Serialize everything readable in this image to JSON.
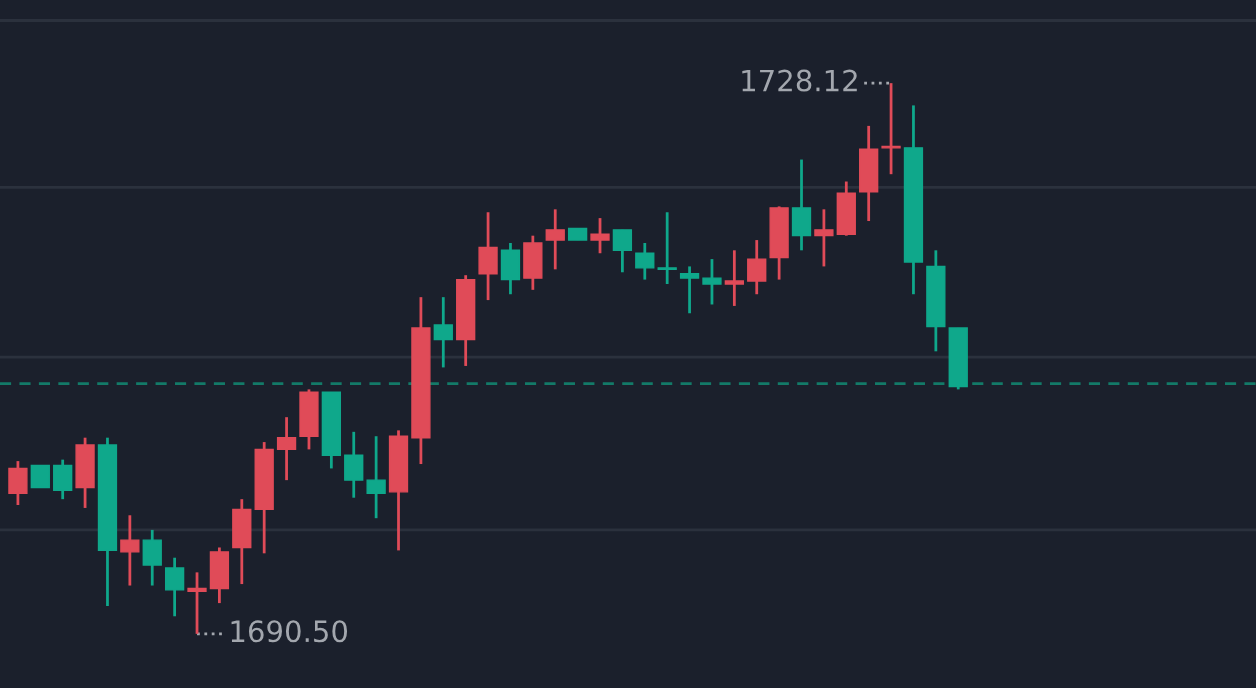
{
  "chart_data": {
    "type": "candlestick",
    "categories": [
      null,
      null,
      null,
      null,
      null,
      null,
      null,
      null,
      null,
      null,
      null,
      null,
      null,
      null,
      null,
      null,
      null,
      null,
      null,
      null,
      null,
      null,
      null,
      null,
      null,
      null,
      null,
      null,
      null,
      null,
      null,
      null,
      null,
      null,
      null,
      null,
      null,
      null,
      null,
      null,
      null,
      null,
      null
    ],
    "ohlc": [
      [
        1700.1,
        1702.3,
        1699.3,
        1701.8
      ],
      [
        1702.0,
        1702.0,
        1700.5,
        1700.5
      ],
      [
        1702.0,
        1702.4,
        1699.7,
        1700.3
      ],
      [
        1700.5,
        1703.9,
        1699.1,
        1703.4
      ],
      [
        1703.4,
        1703.9,
        1692.4,
        1696.2
      ],
      [
        1696.1,
        1698.6,
        1693.8,
        1696.9
      ],
      [
        1696.9,
        1697.6,
        1693.8,
        1695.2
      ],
      [
        1695.0,
        1695.7,
        1691.7,
        1693.5
      ],
      [
        1693.4,
        1694.7,
        1690.5,
        1693.6
      ],
      [
        1693.6,
        1696.4,
        1692.6,
        1696.1
      ],
      [
        1696.4,
        1699.7,
        1693.9,
        1699.0
      ],
      [
        1699.0,
        1703.6,
        1696.0,
        1703.1
      ],
      [
        1703.1,
        1705.3,
        1701.0,
        1703.9
      ],
      [
        1704.0,
        1707.2,
        1703.1,
        1707.0
      ],
      [
        1707.0,
        1707.0,
        1701.8,
        1702.7
      ],
      [
        1702.7,
        1704.3,
        1699.8,
        1701.0
      ],
      [
        1701.0,
        1704.0,
        1698.4,
        1700.1
      ],
      [
        1700.2,
        1704.4,
        1696.2,
        1704.0
      ],
      [
        1703.9,
        1713.5,
        1702.1,
        1711.4
      ],
      [
        1711.6,
        1713.5,
        1708.7,
        1710.6
      ],
      [
        1710.6,
        1715.0,
        1708.8,
        1714.7
      ],
      [
        1715.1,
        1719.3,
        1713.3,
        1716.9
      ],
      [
        1716.7,
        1717.2,
        1713.7,
        1714.7
      ],
      [
        1714.8,
        1717.7,
        1714.0,
        1717.2
      ],
      [
        1717.4,
        1719.5,
        1715.4,
        1718.1
      ],
      [
        1718.2,
        1718.2,
        1717.4,
        1717.4
      ],
      [
        1717.4,
        1718.9,
        1716.5,
        1717.8
      ],
      [
        1718.1,
        1718.1,
        1715.2,
        1716.7
      ],
      [
        1716.5,
        1717.2,
        1714.7,
        1715.5
      ],
      [
        1715.5,
        1719.3,
        1714.4,
        1715.4
      ],
      [
        1715.1,
        1715.6,
        1712.4,
        1714.8
      ],
      [
        1714.8,
        1716.1,
        1713.0,
        1714.4
      ],
      [
        1714.4,
        1716.7,
        1712.9,
        1714.6
      ],
      [
        1714.6,
        1717.4,
        1713.7,
        1716.1
      ],
      [
        1716.2,
        1719.7,
        1714.7,
        1719.6
      ],
      [
        1719.6,
        1722.9,
        1716.7,
        1717.7
      ],
      [
        1717.7,
        1719.5,
        1715.6,
        1718.1
      ],
      [
        1717.8,
        1721.4,
        1717.7,
        1720.6
      ],
      [
        1720.7,
        1725.2,
        1718.7,
        1723.6
      ],
      [
        1723.7,
        1728.12,
        1721.9,
        1723.8
      ],
      [
        1723.7,
        1726.6,
        1713.7,
        1715.9
      ],
      [
        1715.6,
        1716.7,
        1709.8,
        1711.5
      ],
      [
        1711.4,
        1711.4,
        1707.2,
        1707.4
      ]
    ],
    "ylim": [
      1686.8,
      1733.8
    ],
    "yticks": [
      {
        "value": 1732.4,
        "label": null
      },
      {
        "value": 1721.0,
        "label": null
      },
      {
        "value": 1709.4,
        "label": null
      },
      {
        "value": 1697.6,
        "label": null
      }
    ],
    "grid": "y",
    "ref_lines": [
      {
        "axis": "y",
        "value": 1707.6,
        "label": null,
        "color": "#137a68",
        "line_style": "dashed"
      }
    ],
    "annotations": [
      "1728.12",
      "1690.50"
    ]
  }
}
